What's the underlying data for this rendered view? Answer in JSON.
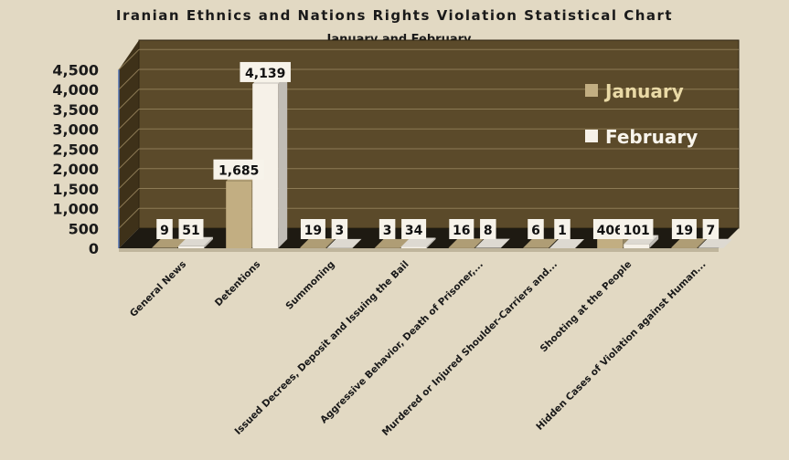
{
  "chart_data": {
    "type": "bar",
    "title": "Iranian Ethnics and Nations Rights Violation Statistical Chart",
    "subtitle": "January and February",
    "categories": [
      "General News",
      "Detentions",
      "Summoning",
      "Issued Decrees, Deposit and Issuing the Bail",
      "Aggressive Behavior, Death of Prisoner,...",
      "Murdered or Injured Shoulder-Carriers and...",
      "Shooting at the People",
      "Hidden Cases of Violation against Human..."
    ],
    "series": [
      {
        "name": "January",
        "values": [
          9,
          1685,
          19,
          3,
          16,
          6,
          406,
          19
        ],
        "color": "#c2ae82"
      },
      {
        "name": "February",
        "values": [
          51,
          4139,
          3,
          34,
          8,
          1,
          101,
          7
        ],
        "color": "#f6f1e8"
      }
    ],
    "data_labels": [
      [
        "9",
        "1,685",
        "19",
        "3",
        "16",
        "6",
        "406",
        "19"
      ],
      [
        "51",
        "4,139",
        "3",
        "34",
        "8",
        "1",
        "101",
        "7"
      ]
    ],
    "y_ticks": [
      "0",
      "500",
      "1,000",
      "1,500",
      "2,000",
      "2,500",
      "3,000",
      "3,500",
      "4,000",
      "4,500"
    ],
    "ylim": [
      0,
      4500
    ],
    "grid": true,
    "legend_position": "right",
    "plot_background": "#5b4a2a",
    "page_background": "#e2d9c3"
  }
}
